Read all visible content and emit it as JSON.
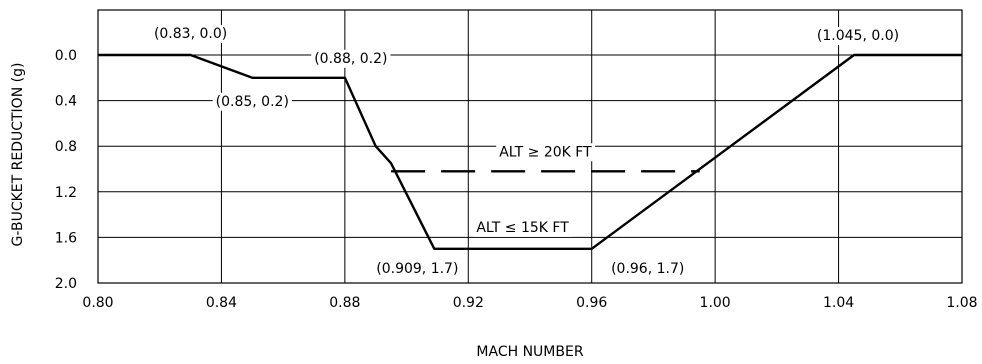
{
  "chart_data": {
    "type": "line",
    "title": "",
    "xlabel": "MACH NUMBER",
    "ylabel": "G-BUCKET REDUCTION (g)",
    "xlim": [
      0.8,
      1.08
    ],
    "ylim": [
      0.0,
      2.0
    ],
    "y_inverted": true,
    "grid": true,
    "x_ticks": [
      "0.80",
      "0.84",
      "0.88",
      "0.92",
      "0.96",
      "1.00",
      "1.04",
      "1.08"
    ],
    "y_ticks": [
      "0.0",
      "0.4",
      "0.8",
      "1.2",
      "1.6",
      "2.0"
    ],
    "series": [
      {
        "style": "solid",
        "x": [
          0.8,
          0.83,
          0.85,
          0.88,
          0.89,
          0.895,
          0.909,
          0.96,
          1.045,
          1.08
        ],
        "y": [
          0.0,
          0.0,
          0.2,
          0.2,
          0.8,
          0.95,
          1.7,
          1.7,
          0.0,
          0.0
        ]
      },
      {
        "style": "dashed",
        "x": [
          0.895,
          0.995
        ],
        "y": [
          1.02,
          1.02
        ]
      }
    ],
    "annotations": [
      {
        "text": "(0.83, 0.0)",
        "x": 0.83,
        "y": 0.0
      },
      {
        "text": "(0.85, 0.2)",
        "x": 0.85,
        "y": 0.2
      },
      {
        "text": "(0.88, 0.2)",
        "x": 0.88,
        "y": 0.2
      },
      {
        "text": "(0.909, 1.7)",
        "x": 0.909,
        "y": 1.7
      },
      {
        "text": "(0.96, 1.7)",
        "x": 0.96,
        "y": 1.7
      },
      {
        "text": "(1.045, 0.0)",
        "x": 1.045,
        "y": 0.0
      },
      {
        "text": "ALT ≥ 20K FT",
        "x": 0.945,
        "y": 1.02
      },
      {
        "text": "ALT ≤ 15K FT",
        "x": 0.935,
        "y": 1.7
      }
    ]
  }
}
